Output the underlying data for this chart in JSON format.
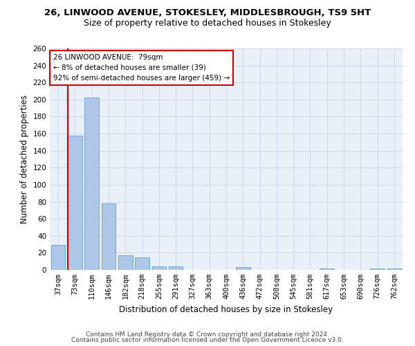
{
  "title1": "26, LINWOOD AVENUE, STOKESLEY, MIDDLESBROUGH, TS9 5HT",
  "title2": "Size of property relative to detached houses in Stokesley",
  "xlabel": "Distribution of detached houses by size in Stokesley",
  "ylabel": "Number of detached properties",
  "footnote1": "Contains HM Land Registry data © Crown copyright and database right 2024.",
  "footnote2": "Contains public sector information licensed under the Open Government Licence v3.0.",
  "categories": [
    "37sqm",
    "73sqm",
    "110sqm",
    "146sqm",
    "182sqm",
    "218sqm",
    "255sqm",
    "291sqm",
    "327sqm",
    "363sqm",
    "400sqm",
    "436sqm",
    "472sqm",
    "508sqm",
    "545sqm",
    "581sqm",
    "617sqm",
    "653sqm",
    "690sqm",
    "726sqm",
    "762sqm"
  ],
  "values": [
    29,
    158,
    202,
    78,
    17,
    15,
    4,
    4,
    0,
    0,
    0,
    3,
    0,
    0,
    0,
    0,
    2,
    0,
    0,
    2,
    2
  ],
  "bar_color": "#aec6e8",
  "bar_edge_color": "#5a9fd4",
  "annotation_text1": "26 LINWOOD AVENUE:  79sqm",
  "annotation_text2": "← 8% of detached houses are smaller (39)",
  "annotation_text3": "92% of semi-detached houses are larger (459) →",
  "annotation_box_facecolor": "#ffffff",
  "annotation_border_color": "#cc0000",
  "vline_color": "#cc0000",
  "ylim": [
    0,
    260
  ],
  "yticks": [
    0,
    20,
    40,
    60,
    80,
    100,
    120,
    140,
    160,
    180,
    200,
    220,
    240,
    260
  ],
  "grid_color": "#d0d8e8",
  "background_color": "#eaf0f8",
  "title1_fontsize": 9.5,
  "title2_fontsize": 9.0,
  "ylabel_fontsize": 8.5,
  "xlabel_fontsize": 8.5,
  "tick_fontsize": 7.5,
  "footnote_fontsize": 6.5
}
